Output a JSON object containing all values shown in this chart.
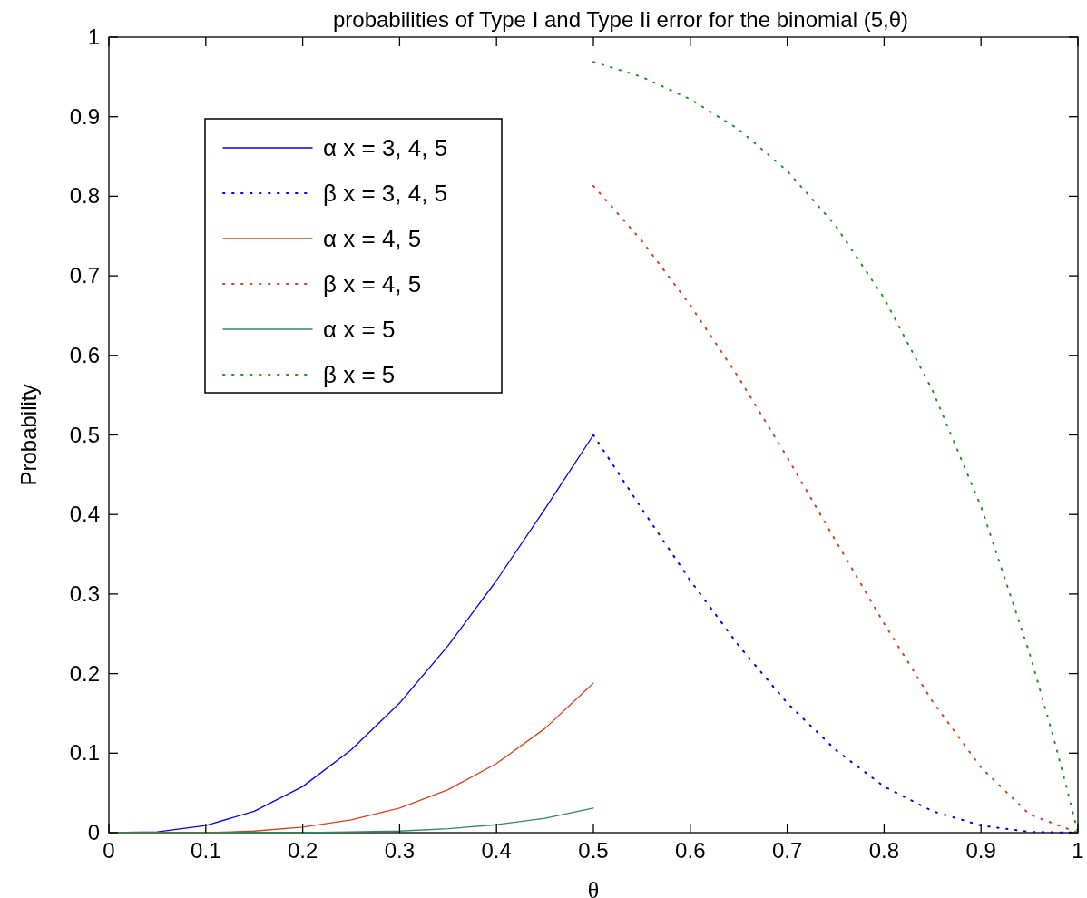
{
  "chart_data": {
    "type": "line",
    "title": "probabilities of Type I and Type Ii error for the binomial (5,θ)",
    "xlabel": "θ",
    "ylabel": "Probability",
    "xlim": [
      0,
      1
    ],
    "ylim": [
      0,
      1
    ],
    "xticks": [
      0,
      0.1,
      0.2,
      0.3,
      0.4,
      0.5,
      0.6,
      0.7,
      0.8,
      0.9,
      1
    ],
    "yticks": [
      0,
      0.1,
      0.2,
      0.3,
      0.4,
      0.5,
      0.6,
      0.7,
      0.8,
      0.9,
      1
    ],
    "legend": "top left",
    "grid": false,
    "series": [
      {
        "name": "α x = 3, 4, 5",
        "color": "#0000ff",
        "line_style": "solid",
        "x": [
          0,
          0.05,
          0.1,
          0.15,
          0.2,
          0.25,
          0.3,
          0.35,
          0.4,
          0.45,
          0.5
        ],
        "values": [
          0,
          0.001,
          0.009,
          0.027,
          0.058,
          0.104,
          0.163,
          0.235,
          0.317,
          0.407,
          0.5
        ]
      },
      {
        "name": "β x = 3, 4, 5",
        "color": "#0000ff",
        "line_style": "dotted",
        "x": [
          0.5,
          0.55,
          0.6,
          0.65,
          0.7,
          0.75,
          0.8,
          0.85,
          0.9,
          0.95,
          1
        ],
        "values": [
          0.5,
          0.407,
          0.317,
          0.235,
          0.163,
          0.104,
          0.058,
          0.027,
          0.009,
          0.001,
          0
        ]
      },
      {
        "name": "α x = 4, 5",
        "color": "#d94016",
        "line_style": "solid",
        "x": [
          0,
          0.1,
          0.15,
          0.2,
          0.25,
          0.3,
          0.35,
          0.4,
          0.45,
          0.5
        ],
        "values": [
          0,
          0,
          0.002,
          0.007,
          0.016,
          0.031,
          0.054,
          0.087,
          0.131,
          0.188
        ]
      },
      {
        "name": "β x = 4, 5",
        "color": "#d94016",
        "line_style": "dotted",
        "x": [
          0.5,
          0.55,
          0.6,
          0.65,
          0.7,
          0.75,
          0.8,
          0.85,
          0.9,
          0.95,
          1
        ],
        "values": [
          0.813,
          0.744,
          0.663,
          0.572,
          0.472,
          0.367,
          0.263,
          0.165,
          0.082,
          0.023,
          0
        ]
      },
      {
        "name": "α x = 5",
        "color": "#2e8b57",
        "line_style": "solid",
        "x": [
          0,
          0.2,
          0.25,
          0.3,
          0.35,
          0.4,
          0.45,
          0.5
        ],
        "values": [
          0,
          0,
          0.001,
          0.002,
          0.005,
          0.01,
          0.018,
          0.031
        ]
      },
      {
        "name": "β x = 5",
        "color": "#1a9a1a",
        "line_style": "dotted",
        "x": [
          0.5,
          0.55,
          0.6,
          0.65,
          0.7,
          0.75,
          0.8,
          0.85,
          0.9,
          0.95,
          0.975,
          0.99,
          1
        ],
        "values": [
          0.969,
          0.95,
          0.922,
          0.884,
          0.832,
          0.763,
          0.672,
          0.556,
          0.41,
          0.226,
          0.119,
          0.049,
          0
        ]
      }
    ]
  }
}
